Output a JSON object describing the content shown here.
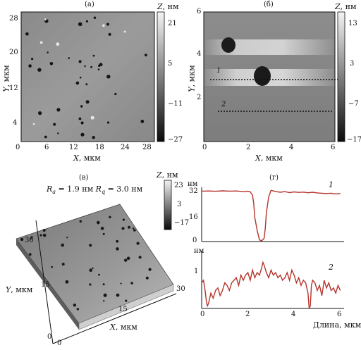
{
  "panels": {
    "a": {
      "label": "(а)",
      "x_title_var": "X",
      "x_title_unit": ", мкм",
      "y_title_var": "Y",
      "y_title_unit": ", мкм",
      "x_ticks": [
        "0",
        "6",
        "12",
        "18",
        "24",
        "28"
      ],
      "y_ticks": [
        "28",
        "20",
        "12",
        "4"
      ],
      "colorbar_title_var": "Z",
      "colorbar_title_unit": ", нм",
      "colorbar_ticks": [
        "21",
        "5",
        "−11",
        "−27"
      ]
    },
    "b": {
      "label": "(б)",
      "x_title_var": "X",
      "x_title_unit": ", мкм",
      "y_title_var": "Y",
      "y_title_unit": ", мкм",
      "x_ticks": [
        "0",
        "2",
        "4",
        "6"
      ],
      "y_ticks": [
        "6",
        "4",
        "2"
      ],
      "colorbar_title_var": "Z",
      "colorbar_title_unit": ", нм",
      "colorbar_ticks": [
        "13",
        "3",
        "−7",
        "−17"
      ],
      "line_labels": [
        "1",
        "2"
      ]
    },
    "c": {
      "label": "(в)",
      "roughness_a_sym": "R",
      "roughness_a_sub": "a",
      "roughness_a_val": " = 1.9 нм ",
      "roughness_q_sym": "R",
      "roughness_q_sub": "q",
      "roughness_q_val": " = 3.0 нм",
      "colorbar_title_var": "Z",
      "colorbar_title_unit": ", нм",
      "colorbar_ticks": [
        "23",
        "3",
        "−17"
      ],
      "y_title_var": "Y",
      "y_title_unit": ", мкм",
      "x_title_var": "X",
      "x_title_unit": ", мкм",
      "y_ticks": [
        "30",
        "15",
        "0"
      ],
      "x_ticks": [
        "0",
        "15",
        "30"
      ]
    },
    "d": {
      "label": "(г)",
      "x_title": "Длина, мкм",
      "x_ticks": [
        "0",
        "2",
        "4",
        "6"
      ]
    }
  },
  "chart_data": [
    {
      "type": "line",
      "series": [
        {
          "name": "1",
          "x": [
            0,
            0.3,
            0.6,
            0.9,
            1.2,
            1.5,
            1.8,
            2.0,
            2.1,
            2.2,
            2.25,
            2.3,
            2.4,
            2.5,
            2.6,
            2.7,
            2.75,
            2.8,
            2.9,
            3.0,
            3.2,
            3.4,
            3.6,
            3.8,
            4.0,
            4.2,
            4.4,
            4.6,
            4.8,
            5.0,
            5.2,
            5.4,
            5.6,
            5.8,
            6.0
          ],
          "y": [
            31.5,
            31.6,
            31.4,
            31.7,
            31.5,
            31.6,
            31.2,
            31.5,
            31.0,
            29,
            24,
            15,
            7,
            1,
            0.5,
            2,
            8,
            18,
            28,
            32,
            31.3,
            30.8,
            31.2,
            30.6,
            31.0,
            30.7,
            30.9,
            30.5,
            30.8,
            30.4,
            30.2,
            30.0,
            30.2,
            29.8,
            30.0
          ]
        }
      ],
      "ylabel": "нм",
      "y_ticks": [
        "32",
        "16",
        "0"
      ],
      "ylim": [
        0,
        33
      ],
      "xlim": [
        0,
        6.1
      ]
    },
    {
      "type": "line",
      "series": [
        {
          "name": "2",
          "x": [
            0,
            0.08,
            0.15,
            0.2,
            0.25,
            0.3,
            0.4,
            0.5,
            0.6,
            0.7,
            0.8,
            0.9,
            1.0,
            1.1,
            1.2,
            1.3,
            1.4,
            1.5,
            1.6,
            1.7,
            1.8,
            1.9,
            2.0,
            2.1,
            2.2,
            2.3,
            2.4,
            2.5,
            2.6,
            2.65,
            2.7,
            2.8,
            2.9,
            3.0,
            3.1,
            3.2,
            3.3,
            3.4,
            3.5,
            3.6,
            3.7,
            3.8,
            3.9,
            4.0,
            4.1,
            4.2,
            4.3,
            4.4,
            4.5,
            4.6,
            4.65,
            4.7,
            4.75,
            4.8,
            4.9,
            5.0,
            5.1,
            5.2,
            5.3,
            5.4,
            5.5,
            5.6,
            5.7,
            5.8,
            5.9,
            6.0
          ],
          "y": [
            0.9,
            1.0,
            0.6,
            0.2,
            0.0,
            0.1,
            0.5,
            0.3,
            0.6,
            0.7,
            0.4,
            0.6,
            0.9,
            0.8,
            0.6,
            0.9,
            1.0,
            1.1,
            0.8,
            1.2,
            1.0,
            1.2,
            1.3,
            1.0,
            1.4,
            1.1,
            1.3,
            1.2,
            1.5,
            1.7,
            1.6,
            1.3,
            1.1,
            1.4,
            1.2,
            1.3,
            1.1,
            1.2,
            1.0,
            1.1,
            1.3,
            1.0,
            1.4,
            1.2,
            0.9,
            1.1,
            0.8,
            1.0,
            0.9,
            0.5,
            -0.1,
            0.0,
            0.8,
            1.0,
            0.9,
            0.6,
            0.8,
            0.4,
            1.0,
            0.7,
            0.9,
            0.6,
            0.7,
            0.5,
            0.8,
            0.6
          ]
        }
      ],
      "ylabel": "нм",
      "y_ticks": [
        "1"
      ],
      "ylim": [
        -0.1,
        2.1
      ],
      "xlim": [
        0,
        6.1
      ]
    }
  ]
}
